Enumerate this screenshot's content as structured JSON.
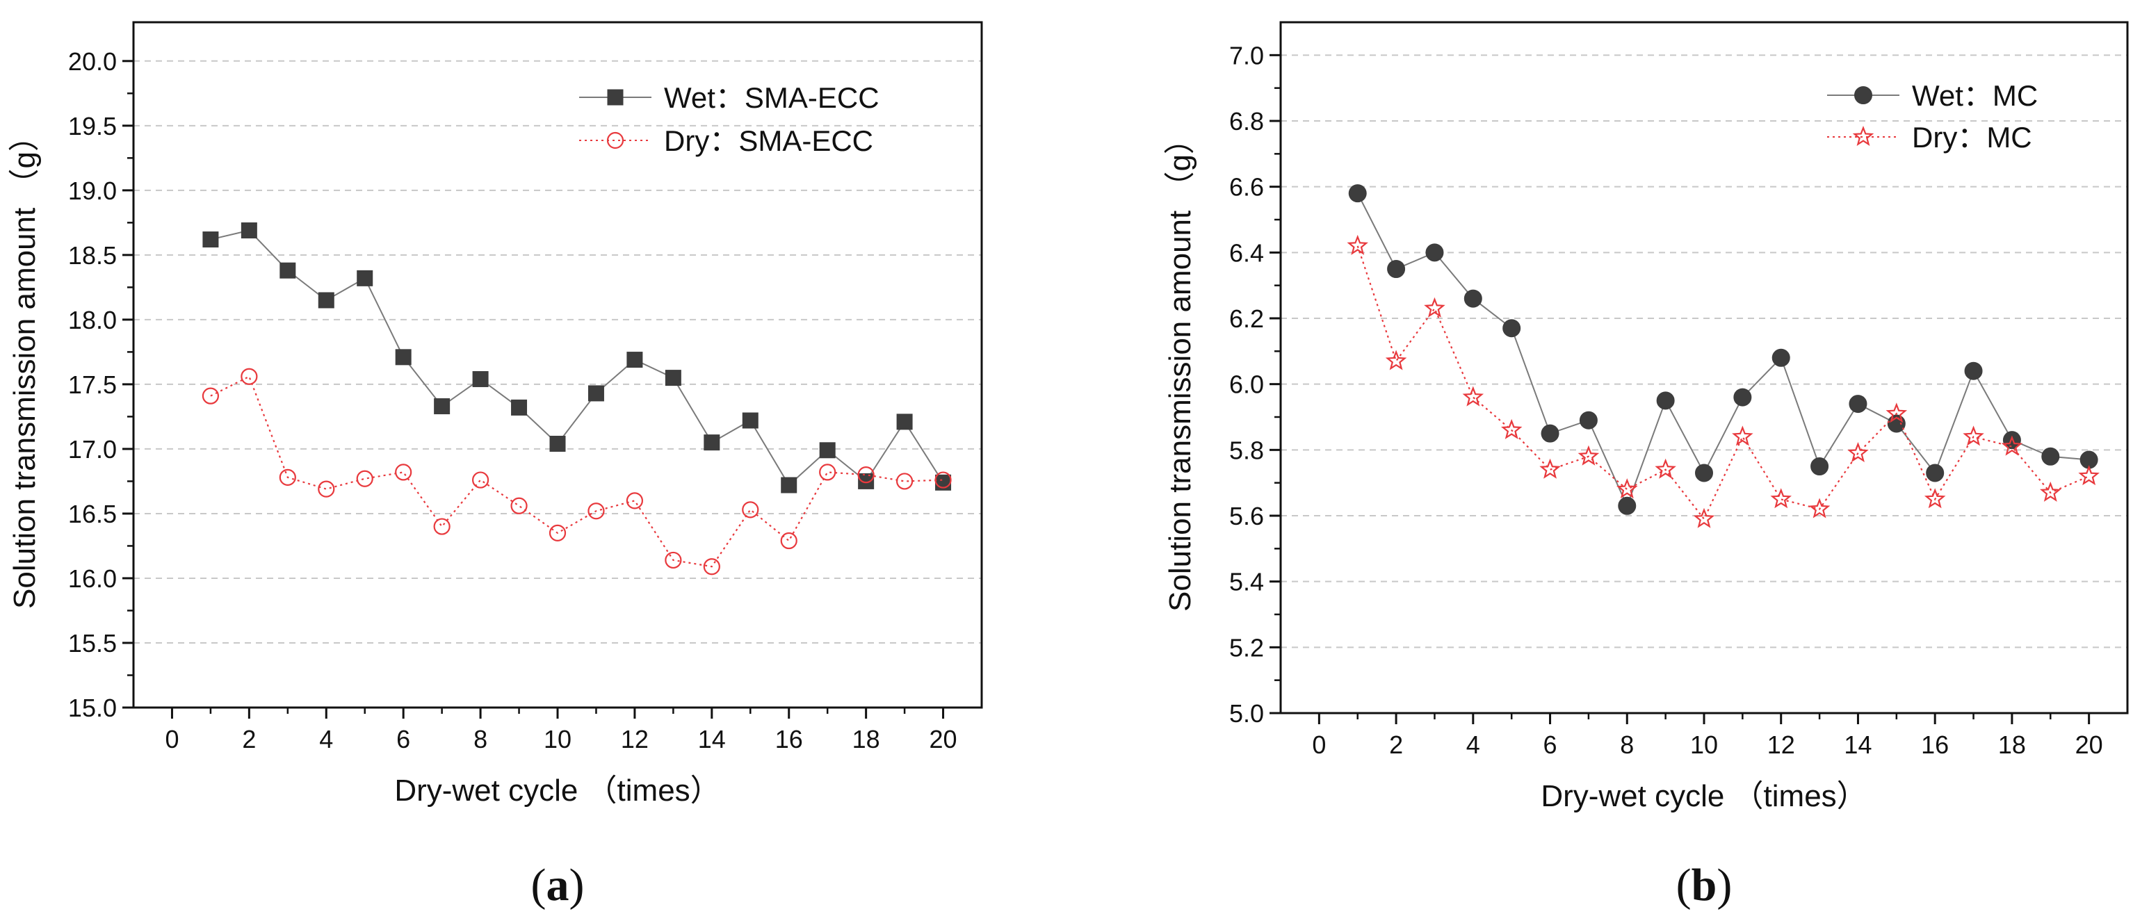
{
  "chart_data": [
    {
      "type": "line",
      "caption": {
        "open": "(",
        "letter": "a",
        "close": ")"
      },
      "xlabel": "Dry-wet cycle （times）",
      "ylabel": "Solution transmission amount （g）",
      "xlim": [
        -1,
        21
      ],
      "ylim": [
        15.0,
        20.3
      ],
      "xticks": [
        0,
        2,
        4,
        6,
        8,
        10,
        12,
        14,
        16,
        18,
        20
      ],
      "yticks": [
        15.0,
        15.5,
        16.0,
        16.5,
        17.0,
        17.5,
        18.0,
        18.5,
        19.0,
        19.5,
        20.0
      ],
      "ytick_decimals": 1,
      "grid": "horizontal-dashed",
      "legend_position": "top-right",
      "x": [
        1,
        2,
        3,
        4,
        5,
        6,
        7,
        8,
        9,
        10,
        11,
        12,
        13,
        14,
        15,
        16,
        17,
        18,
        19,
        20
      ],
      "series": [
        {
          "name": "Wet：SMA-ECC",
          "marker": "square-filled",
          "line": "solid",
          "color": "#3d3d3d",
          "values": [
            18.62,
            18.69,
            18.38,
            18.15,
            18.32,
            17.71,
            17.33,
            17.54,
            17.32,
            17.04,
            17.43,
            17.69,
            17.55,
            17.05,
            17.22,
            16.72,
            16.99,
            16.75,
            17.21,
            16.74
          ]
        },
        {
          "name": "Dry：SMA-ECC",
          "marker": "circle-open",
          "line": "dotted",
          "color": "#e8393d",
          "values": [
            17.41,
            17.56,
            16.78,
            16.69,
            16.77,
            16.82,
            16.4,
            16.76,
            16.56,
            16.35,
            16.52,
            16.6,
            16.14,
            16.09,
            16.53,
            16.29,
            16.82,
            16.8,
            16.75,
            16.76
          ]
        }
      ]
    },
    {
      "type": "line",
      "caption": {
        "open": "(",
        "letter": "b",
        "close": ")"
      },
      "xlabel": "Dry-wet cycle （times）",
      "ylabel": "Solution transmission amount （g）",
      "xlim": [
        -1,
        21
      ],
      "ylim": [
        5.0,
        7.1
      ],
      "xticks": [
        0,
        2,
        4,
        6,
        8,
        10,
        12,
        14,
        16,
        18,
        20
      ],
      "yticks": [
        5.0,
        5.2,
        5.4,
        5.6,
        5.8,
        6.0,
        6.2,
        6.4,
        6.6,
        6.8,
        7.0
      ],
      "ytick_decimals": 1,
      "grid": "horizontal-dashed",
      "legend_position": "top-right",
      "x": [
        1,
        2,
        3,
        4,
        5,
        6,
        7,
        8,
        9,
        10,
        11,
        12,
        13,
        14,
        15,
        16,
        17,
        18,
        19,
        20
      ],
      "series": [
        {
          "name": "Wet：MC",
          "marker": "circle-filled",
          "line": "solid",
          "color": "#3d3d3d",
          "values": [
            6.58,
            6.35,
            6.4,
            6.26,
            6.17,
            5.85,
            5.89,
            5.63,
            5.95,
            5.73,
            5.96,
            6.08,
            5.75,
            5.94,
            5.88,
            5.73,
            6.04,
            5.83,
            5.78,
            5.77
          ]
        },
        {
          "name": "Dry：MC",
          "marker": "star-open",
          "line": "dotted",
          "color": "#e8393d",
          "values": [
            6.42,
            6.07,
            6.23,
            5.96,
            5.86,
            5.74,
            5.78,
            5.68,
            5.74,
            5.59,
            5.84,
            5.65,
            5.62,
            5.79,
            5.91,
            5.65,
            5.84,
            5.81,
            5.67,
            5.72
          ]
        }
      ]
    }
  ]
}
